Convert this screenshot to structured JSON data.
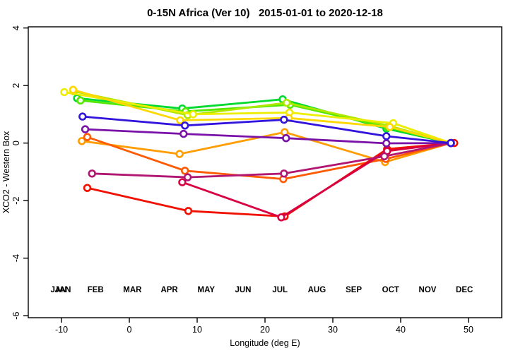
{
  "chart_data": {
    "type": "line",
    "title": "0-15N Africa (Ver 10)   2015-01-01 to 2020-12-18",
    "xlabel": "Longitude (deg E)",
    "ylabel": "XCO2 - Western Box",
    "xlim": [
      -14.9,
      54.9
    ],
    "ylim": [
      -6.07,
      4.04
    ],
    "x_ticks": [
      -10,
      0,
      10,
      20,
      30,
      40,
      50
    ],
    "y_ticks": [
      -6,
      -4,
      -2,
      0,
      2,
      4
    ],
    "grid": false,
    "legend_position": "inside-bottom",
    "marker": "open-circle",
    "series": [
      {
        "name": "JAN",
        "color": "#00D930",
        "points": [
          [
            -7.7,
            1.56
          ],
          [
            7.8,
            1.2
          ],
          [
            22.6,
            1.52
          ],
          [
            37.9,
            0.5
          ],
          [
            47.4,
            0.0
          ]
        ]
      },
      {
        "name": "FEB",
        "color": "#52E800",
        "points": [
          [
            -7.2,
            1.48
          ],
          [
            8.3,
            1.1
          ],
          [
            23.7,
            1.33
          ],
          [
            38.1,
            0.55
          ],
          [
            47.4,
            0.0
          ]
        ]
      },
      {
        "name": "MAR",
        "color": "#AEE800",
        "points": [
          [
            -8.2,
            1.8
          ],
          [
            8.6,
            0.97
          ],
          [
            23.2,
            1.4
          ],
          [
            38.3,
            0.6
          ],
          [
            47.4,
            0.0
          ]
        ]
      },
      {
        "name": "APR",
        "color": "#EDED00",
        "points": [
          [
            -9.6,
            1.77
          ],
          [
            9.4,
            1.0
          ],
          [
            23.6,
            1.06
          ],
          [
            38.9,
            0.69
          ],
          [
            47.4,
            0.0
          ]
        ]
      },
      {
        "name": "MAY",
        "color": "#FFD700",
        "points": [
          [
            -8.3,
            1.85
          ],
          [
            7.5,
            0.79
          ],
          [
            23.5,
            0.87
          ],
          [
            38.4,
            0.56
          ],
          [
            47.4,
            0.0
          ]
        ]
      },
      {
        "name": "JUN",
        "color": "#FF9C00",
        "points": [
          [
            -7.0,
            0.07
          ],
          [
            7.4,
            -0.38
          ],
          [
            22.9,
            0.38
          ],
          [
            37.7,
            -0.66
          ],
          [
            47.4,
            0.0
          ]
        ]
      },
      {
        "name": "JUL",
        "color": "#FF5A00",
        "points": [
          [
            -6.2,
            0.21
          ],
          [
            8.2,
            -0.96
          ],
          [
            22.7,
            -1.25
          ],
          [
            37.8,
            -0.55
          ],
          [
            47.4,
            0.0
          ]
        ]
      },
      {
        "name": "AUG",
        "color": "#F01000",
        "points": [
          [
            -6.2,
            -1.56
          ],
          [
            8.7,
            -2.36
          ],
          [
            22.9,
            -2.55
          ],
          [
            38.0,
            -0.21
          ],
          [
            47.9,
            0.0
          ]
        ]
      },
      {
        "name": "SEP",
        "color": "#D80043",
        "points": [
          [
            7.8,
            -1.36
          ],
          [
            22.4,
            -2.58
          ],
          [
            38.0,
            -0.28
          ],
          [
            47.4,
            0.0
          ]
        ]
      },
      {
        "name": "OCT",
        "color": "#B11672",
        "points": [
          [
            -5.5,
            -1.06
          ],
          [
            8.6,
            -1.19
          ],
          [
            22.8,
            -1.06
          ],
          [
            37.6,
            -0.46
          ],
          [
            47.4,
            0.0
          ]
        ]
      },
      {
        "name": "NOV",
        "color": "#7A11A8",
        "points": [
          [
            -6.5,
            0.48
          ],
          [
            8.0,
            0.32
          ],
          [
            23.1,
            0.17
          ],
          [
            37.9,
            -0.01
          ],
          [
            47.4,
            0.0
          ]
        ]
      },
      {
        "name": "DEC",
        "color": "#3214DC",
        "points": [
          [
            -6.9,
            0.92
          ],
          [
            8.2,
            0.61
          ],
          [
            22.8,
            0.81
          ],
          [
            37.9,
            0.24
          ],
          [
            47.4,
            0.0
          ]
        ]
      }
    ],
    "legend": [
      {
        "label": "JAN",
        "color": "#00D930",
        "double_printed": true
      },
      {
        "label": "FEB",
        "color": "#52E800",
        "double_printed": false
      },
      {
        "label": "MAR",
        "color": "#AEE800",
        "double_printed": false
      },
      {
        "label": "APR",
        "color": "#EDED00",
        "double_printed": false
      },
      {
        "label": "MAY",
        "color": "#FFD700",
        "double_printed": false
      },
      {
        "label": "JUN",
        "color": "#FF9C00",
        "double_printed": false
      },
      {
        "label": "JUL",
        "color": "#FF5A00",
        "double_printed": false
      },
      {
        "label": "AUG",
        "color": "#F01000",
        "double_printed": false
      },
      {
        "label": "SEP",
        "color": "#D80043",
        "double_printed": false
      },
      {
        "label": "OCT",
        "color": "#B11672",
        "double_printed": false
      },
      {
        "label": "NOV",
        "color": "#7A11A8",
        "double_printed": false
      },
      {
        "label": "DEC",
        "color": "#3214DC",
        "double_printed": false
      }
    ]
  }
}
